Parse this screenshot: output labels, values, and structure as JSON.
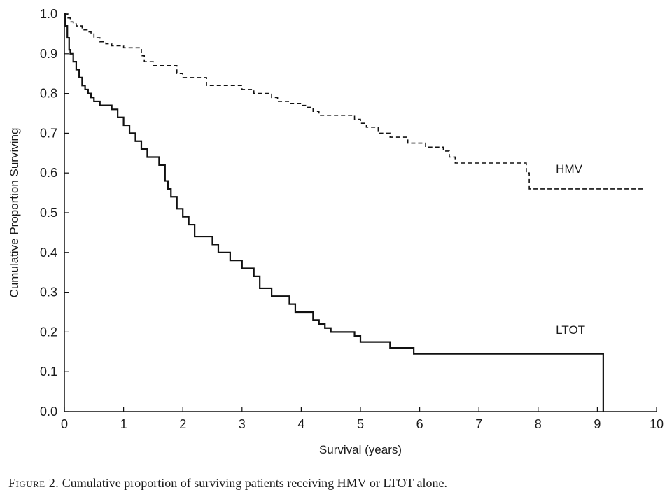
{
  "chart_data": {
    "type": "line",
    "xlabel": "Survival (years)",
    "ylabel": "Cumulative Proportion Surviving",
    "xlim": [
      0,
      10
    ],
    "ylim": [
      0,
      1
    ],
    "x_ticks": [
      0,
      1,
      2,
      3,
      4,
      5,
      6,
      7,
      8,
      9,
      10
    ],
    "y_ticks": [
      0.0,
      0.1,
      0.2,
      0.3,
      0.4,
      0.5,
      0.6,
      0.7,
      0.8,
      0.9,
      1.0
    ],
    "x_tick_labels": [
      "0",
      "1",
      "2",
      "3",
      "4",
      "5",
      "6",
      "7",
      "8",
      "9",
      "10"
    ],
    "y_tick_labels": [
      "0.0",
      "0.1",
      "0.2",
      "0.3",
      "0.4",
      "0.5",
      "0.6",
      "0.7",
      "0.8",
      "0.9",
      "1.0"
    ],
    "grid": false,
    "series": [
      {
        "name": "HMV",
        "style": "dashed",
        "step": true,
        "x": [
          0,
          0.05,
          0.1,
          0.15,
          0.2,
          0.3,
          0.4,
          0.45,
          0.5,
          0.6,
          0.7,
          0.8,
          1.0,
          1.3,
          1.35,
          1.5,
          1.9,
          2.0,
          2.4,
          2.8,
          3.0,
          3.2,
          3.5,
          3.6,
          3.8,
          4.0,
          4.1,
          4.2,
          4.3,
          4.9,
          5.0,
          5.1,
          5.3,
          5.5,
          5.8,
          6.1,
          6.4,
          6.5,
          6.6,
          7.8,
          7.85,
          9.8
        ],
        "y": [
          1.0,
          0.99,
          0.98,
          0.975,
          0.97,
          0.96,
          0.955,
          0.95,
          0.94,
          0.93,
          0.925,
          0.92,
          0.915,
          0.895,
          0.88,
          0.87,
          0.85,
          0.84,
          0.82,
          0.82,
          0.81,
          0.8,
          0.79,
          0.78,
          0.775,
          0.77,
          0.765,
          0.755,
          0.745,
          0.735,
          0.725,
          0.715,
          0.7,
          0.69,
          0.675,
          0.665,
          0.655,
          0.64,
          0.625,
          0.6,
          0.56,
          0.56
        ]
      },
      {
        "name": "LTOT",
        "style": "solid",
        "step": true,
        "x": [
          0,
          0.02,
          0.05,
          0.08,
          0.1,
          0.15,
          0.2,
          0.25,
          0.3,
          0.35,
          0.4,
          0.45,
          0.5,
          0.6,
          0.8,
          0.9,
          1.0,
          1.1,
          1.2,
          1.3,
          1.4,
          1.6,
          1.7,
          1.75,
          1.8,
          1.9,
          2.0,
          2.1,
          2.2,
          2.5,
          2.6,
          2.8,
          3.0,
          3.2,
          3.3,
          3.5,
          3.8,
          3.9,
          4.2,
          4.3,
          4.4,
          4.5,
          4.9,
          5.0,
          5.5,
          5.9,
          9.1
        ],
        "y": [
          1.0,
          0.97,
          0.94,
          0.91,
          0.9,
          0.88,
          0.86,
          0.84,
          0.82,
          0.81,
          0.8,
          0.79,
          0.78,
          0.77,
          0.76,
          0.74,
          0.72,
          0.7,
          0.68,
          0.66,
          0.64,
          0.62,
          0.58,
          0.56,
          0.54,
          0.51,
          0.49,
          0.47,
          0.44,
          0.42,
          0.4,
          0.38,
          0.36,
          0.34,
          0.31,
          0.29,
          0.27,
          0.25,
          0.23,
          0.22,
          0.21,
          0.2,
          0.19,
          0.175,
          0.16,
          0.145,
          0.0
        ]
      }
    ],
    "annotations": [
      {
        "text": "HMV",
        "x": 8.3,
        "y": 0.6
      },
      {
        "text": "LTOT",
        "x": 8.3,
        "y": 0.195
      }
    ]
  },
  "caption": {
    "prefix": "Figure 2.",
    "text": "Cumulative proportion of surviving patients receiving HMV or LTOT alone."
  }
}
